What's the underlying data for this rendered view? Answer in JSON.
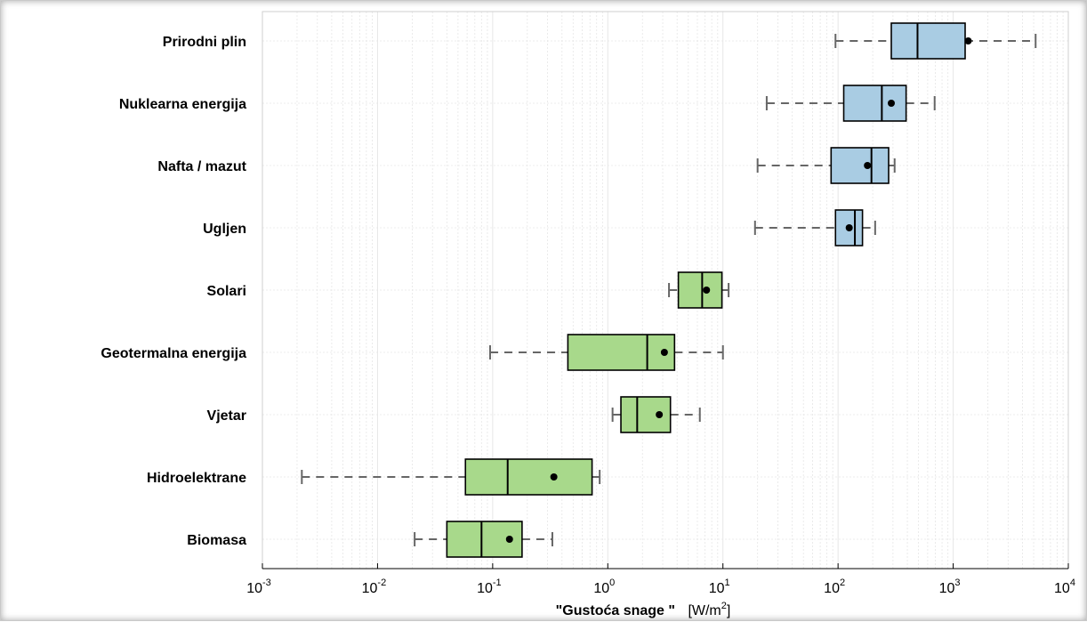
{
  "chart_data": {
    "type": "box",
    "xscale": "log",
    "xlim": [
      0.001,
      10000
    ],
    "grid": true,
    "xlabel_bold": "\"Gustoća snage \"",
    "xlabel_unit_prefix": "[W/m",
    "xlabel_unit_exp": "2",
    "xlabel_unit_suffix": "]",
    "xticks": [
      {
        "base": "10",
        "exp": "-3",
        "value": 0.001
      },
      {
        "base": "10",
        "exp": "-2",
        "value": 0.01
      },
      {
        "base": "10",
        "exp": "-1",
        "value": 0.1
      },
      {
        "base": "10",
        "exp": "0",
        "value": 1
      },
      {
        "base": "10",
        "exp": "1",
        "value": 10
      },
      {
        "base": "10",
        "exp": "2",
        "value": 100
      },
      {
        "base": "10",
        "exp": "3",
        "value": 1000
      },
      {
        "base": "10",
        "exp": "4",
        "value": 10000
      }
    ],
    "colors": {
      "fossil": "#a9cce3",
      "renewable": "#a8d98b",
      "whisker": "#666666",
      "box_edge": "#000000",
      "grid": "#e6e6e6"
    },
    "series": [
      {
        "label": "Prirodni plin",
        "group": "fossil",
        "min": 95,
        "q1": 290,
        "median": 490,
        "q3": 1270,
        "max": 5200,
        "mean": 1350
      },
      {
        "label": "Nuklearna energija",
        "group": "fossil",
        "min": 24,
        "q1": 112,
        "median": 240,
        "q3": 390,
        "max": 690,
        "mean": 290
      },
      {
        "label": "Nafta / mazut",
        "group": "fossil",
        "min": 20,
        "q1": 87,
        "median": 195,
        "q3": 275,
        "max": 310,
        "mean": 180
      },
      {
        "label": "Ugljen",
        "group": "fossil",
        "min": 19,
        "q1": 95,
        "median": 140,
        "q3": 163,
        "max": 210,
        "mean": 125
      },
      {
        "label": "Solari",
        "group": "renewable",
        "min": 3.4,
        "q1": 4.1,
        "median": 6.6,
        "q3": 9.8,
        "max": 11.2,
        "mean": 7.2
      },
      {
        "label": "Geotermalna energija",
        "group": "renewable",
        "min": 0.095,
        "q1": 0.45,
        "median": 2.2,
        "q3": 3.8,
        "max": 10.0,
        "mean": 3.1
      },
      {
        "label": "Vjetar",
        "group": "renewable",
        "min": 1.1,
        "q1": 1.3,
        "median": 1.8,
        "q3": 3.5,
        "max": 6.3,
        "mean": 2.8
      },
      {
        "label": "Hidroelektrane",
        "group": "renewable",
        "min": 0.0022,
        "q1": 0.058,
        "median": 0.135,
        "q3": 0.73,
        "max": 0.85,
        "mean": 0.34
      },
      {
        "label": "Biomasa",
        "group": "renewable",
        "min": 0.021,
        "q1": 0.04,
        "median": 0.08,
        "q3": 0.18,
        "max": 0.33,
        "mean": 0.14
      }
    ]
  }
}
